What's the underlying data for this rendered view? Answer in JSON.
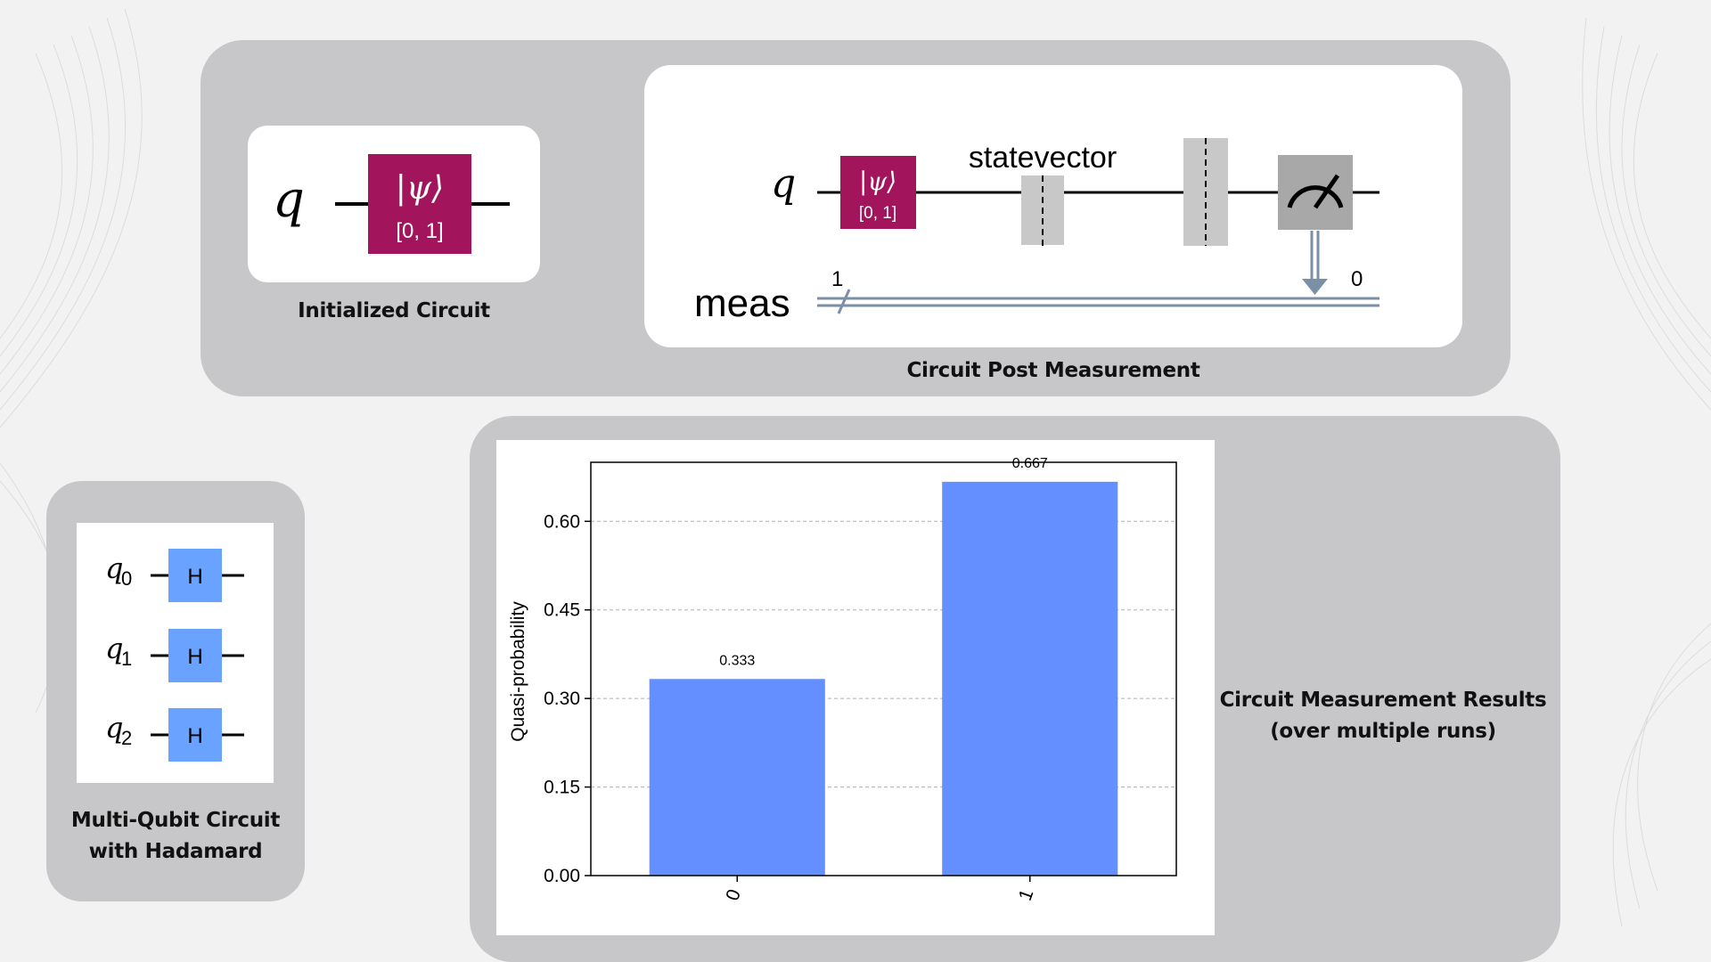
{
  "colors": {
    "panel": "#c7c6c8",
    "init_gate": "#a2145c",
    "hadamard_gate": "#6aa2ff",
    "bar": "#648fff",
    "measure_gate": "#a8a8a8",
    "barrier": "#c8c8c8",
    "classical_wire": "#7b8fa6"
  },
  "initialized_circuit": {
    "caption": "Initialized Circuit",
    "qubit_label": "q",
    "gate_label": "|ψ⟩",
    "gate_params": "[0, 1]"
  },
  "post_measurement_circuit": {
    "caption": "Circuit Post Measurement",
    "qubit_label": "q",
    "gate_label": "|ψ⟩",
    "gate_params": "[0, 1]",
    "barrier_label": "statevector",
    "classical_register": "meas",
    "register_width": "1",
    "measure_bit": "0",
    "measure_icon": "meter-icon"
  },
  "multi_qubit_circuit": {
    "caption_line1": "Multi-Qubit Circuit",
    "caption_line2": "with Hadamard",
    "qubits": [
      {
        "name": "q",
        "index": "0",
        "gate": "H"
      },
      {
        "name": "q",
        "index": "1",
        "gate": "H"
      },
      {
        "name": "q",
        "index": "2",
        "gate": "H"
      }
    ]
  },
  "measurement_results": {
    "caption_line1": "Circuit Measurement Results",
    "caption_line2": "(over multiple runs)"
  },
  "chart_data": {
    "type": "bar",
    "categories": [
      "0",
      "1"
    ],
    "values": [
      0.333,
      0.667
    ],
    "value_labels": [
      "0.333",
      "0.667"
    ],
    "ylabel": "Quasi-probability",
    "yticks": [
      "0.00",
      "0.15",
      "0.30",
      "0.45",
      "0.60"
    ],
    "ytick_values": [
      0,
      0.15,
      0.3,
      0.45,
      0.6
    ],
    "ylim": [
      0,
      0.7
    ],
    "grid": "horizontal dashed",
    "legend": "none"
  }
}
